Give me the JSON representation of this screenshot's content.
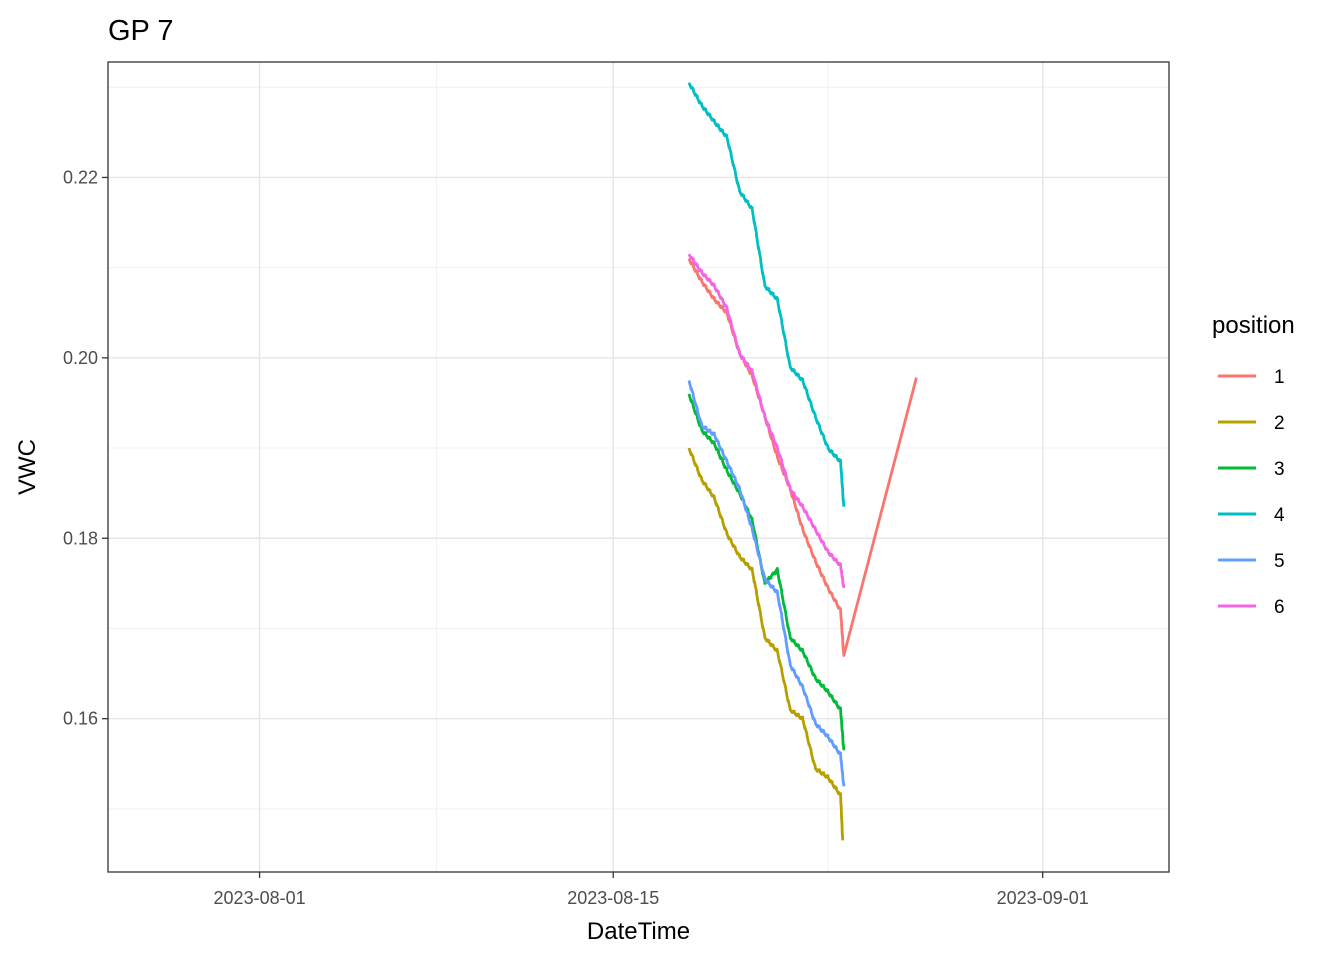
{
  "chart_data": {
    "type": "line",
    "title": "GP 7",
    "xlabel": "DateTime",
    "ylabel": "VWC",
    "x_type": "date",
    "xlim": [
      "2023-07-26",
      "2023-09-06"
    ],
    "ylim": [
      0.143,
      0.2328
    ],
    "x_ticks": [
      "2023-08-01",
      "2023-08-15",
      "2023-09-01"
    ],
    "y_ticks": [
      0.16,
      0.18,
      0.2,
      0.22
    ],
    "y_tick_labels": [
      "0.16",
      "0.18",
      "0.20",
      "0.22"
    ],
    "grid": true,
    "legend": {
      "title": "position",
      "placement": "right"
    },
    "series": [
      {
        "name": "1",
        "color": "#F8766D",
        "points": [
          [
            "2023-08-18T00:00",
            0.211
          ],
          [
            "2023-08-18T12:00",
            0.2085
          ],
          [
            "2023-08-19T00:00",
            0.2065
          ],
          [
            "2023-08-19T12:00",
            0.205
          ],
          [
            "2023-08-20T00:00",
            0.2005
          ],
          [
            "2023-08-20T12:00",
            0.198
          ],
          [
            "2023-08-21T00:00",
            0.1935
          ],
          [
            "2023-08-21T12:00",
            0.189
          ],
          [
            "2023-08-22T00:00",
            0.1855
          ],
          [
            "2023-08-22T12:00",
            0.181
          ],
          [
            "2023-08-23T00:00",
            0.1775
          ],
          [
            "2023-08-23T12:00",
            0.1745
          ],
          [
            "2023-08-24T00:00",
            0.172
          ],
          [
            "2023-08-24T03:00",
            0.167
          ],
          [
            "2023-08-27T00:00",
            0.1978
          ]
        ]
      },
      {
        "name": "2",
        "color": "#B79F00",
        "points": [
          [
            "2023-08-18T00:00",
            0.19
          ],
          [
            "2023-08-18T12:00",
            0.1865
          ],
          [
            "2023-08-19T00:00",
            0.1845
          ],
          [
            "2023-08-19T12:00",
            0.1805
          ],
          [
            "2023-08-20T00:00",
            0.178
          ],
          [
            "2023-08-20T12:00",
            0.1765
          ],
          [
            "2023-08-21T00:00",
            0.169
          ],
          [
            "2023-08-21T12:00",
            0.1675
          ],
          [
            "2023-08-22T00:00",
            0.161
          ],
          [
            "2023-08-22T12:00",
            0.16
          ],
          [
            "2023-08-23T00:00",
            0.1545
          ],
          [
            "2023-08-23T12:00",
            0.1535
          ],
          [
            "2023-08-24T00:00",
            0.1515
          ],
          [
            "2023-08-24T02:00",
            0.1465
          ]
        ]
      },
      {
        "name": "3",
        "color": "#00BA38",
        "points": [
          [
            "2023-08-18T00:00",
            0.196
          ],
          [
            "2023-08-18T12:00",
            0.192
          ],
          [
            "2023-08-19T00:00",
            0.1905
          ],
          [
            "2023-08-19T12:00",
            0.1875
          ],
          [
            "2023-08-20T00:00",
            0.185
          ],
          [
            "2023-08-20T12:00",
            0.182
          ],
          [
            "2023-08-21T00:00",
            0.175
          ],
          [
            "2023-08-21T12:00",
            0.1765
          ],
          [
            "2023-08-22T00:00",
            0.169
          ],
          [
            "2023-08-22T12:00",
            0.1675
          ],
          [
            "2023-08-23T00:00",
            0.1645
          ],
          [
            "2023-08-23T12:00",
            0.163
          ],
          [
            "2023-08-24T00:00",
            0.161
          ],
          [
            "2023-08-24T03:00",
            0.1565
          ]
        ]
      },
      {
        "name": "4",
        "color": "#00BFC4",
        "points": [
          [
            "2023-08-18T00:00",
            0.2305
          ],
          [
            "2023-08-18T12:00",
            0.228
          ],
          [
            "2023-08-19T00:00",
            0.2262
          ],
          [
            "2023-08-19T12:00",
            0.2245
          ],
          [
            "2023-08-20T00:00",
            0.2185
          ],
          [
            "2023-08-20T12:00",
            0.2165
          ],
          [
            "2023-08-21T00:00",
            0.208
          ],
          [
            "2023-08-21T12:00",
            0.2065
          ],
          [
            "2023-08-22T00:00",
            0.199
          ],
          [
            "2023-08-22T12:00",
            0.1975
          ],
          [
            "2023-08-23T00:00",
            0.1935
          ],
          [
            "2023-08-23T12:00",
            0.19
          ],
          [
            "2023-08-24T00:00",
            0.1885
          ],
          [
            "2023-08-24T03:00",
            0.1835
          ]
        ]
      },
      {
        "name": "5",
        "color": "#619CFF",
        "points": [
          [
            "2023-08-18T00:00",
            0.1975
          ],
          [
            "2023-08-18T12:00",
            0.1925
          ],
          [
            "2023-08-19T00:00",
            0.1915
          ],
          [
            "2023-08-19T12:00",
            0.1885
          ],
          [
            "2023-08-20T00:00",
            0.1855
          ],
          [
            "2023-08-20T12:00",
            0.181
          ],
          [
            "2023-08-21T00:00",
            0.1755
          ],
          [
            "2023-08-21T12:00",
            0.174
          ],
          [
            "2023-08-22T00:00",
            0.166
          ],
          [
            "2023-08-22T12:00",
            0.1635
          ],
          [
            "2023-08-23T00:00",
            0.1595
          ],
          [
            "2023-08-23T12:00",
            0.158
          ],
          [
            "2023-08-24T00:00",
            0.156
          ],
          [
            "2023-08-24T03:00",
            0.1525
          ]
        ]
      },
      {
        "name": "6",
        "color": "#F564E3",
        "points": [
          [
            "2023-08-18T00:00",
            0.2115
          ],
          [
            "2023-08-18T12:00",
            0.2095
          ],
          [
            "2023-08-19T00:00",
            0.208
          ],
          [
            "2023-08-19T12:00",
            0.2055
          ],
          [
            "2023-08-20T00:00",
            0.2005
          ],
          [
            "2023-08-20T12:00",
            0.1985
          ],
          [
            "2023-08-21T00:00",
            0.1935
          ],
          [
            "2023-08-21T12:00",
            0.19
          ],
          [
            "2023-08-22T00:00",
            0.1855
          ],
          [
            "2023-08-22T12:00",
            0.1835
          ],
          [
            "2023-08-23T00:00",
            0.181
          ],
          [
            "2023-08-23T12:00",
            0.1785
          ],
          [
            "2023-08-24T00:00",
            0.177
          ],
          [
            "2023-08-24T03:00",
            0.1745
          ]
        ]
      }
    ]
  }
}
